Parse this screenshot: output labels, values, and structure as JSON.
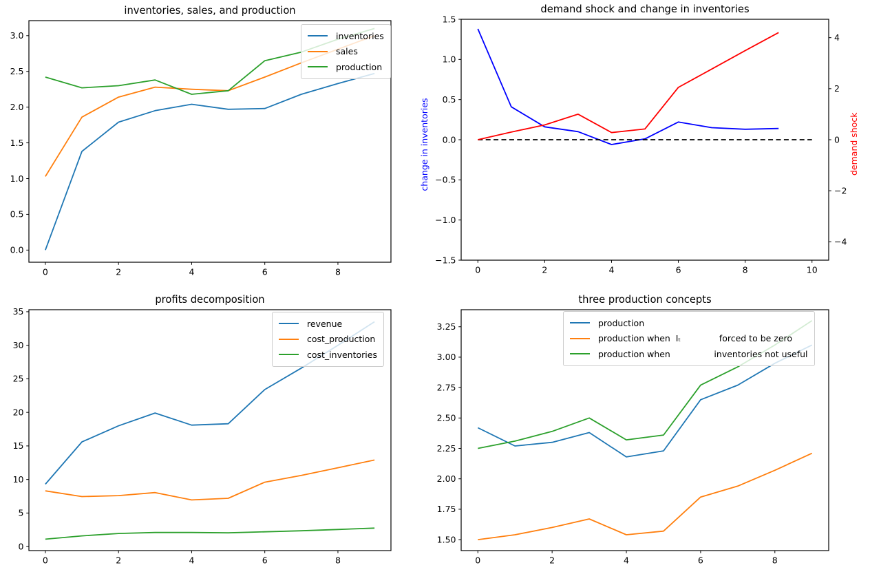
{
  "figure": {
    "background": "#ffffff",
    "text_color": "#000000"
  },
  "chart_data": [
    {
      "type": "line",
      "title": "inventories, sales, and production",
      "x": [
        0,
        1,
        2,
        3,
        4,
        5,
        6,
        7,
        8,
        9
      ],
      "xlim": [
        -0.45,
        9.45
      ],
      "ylim": [
        -0.17,
        3.21
      ],
      "grid": false,
      "legend": {
        "loc": "upper right",
        "entries": [
          {
            "label": "inventories",
            "color": "#1f77b4"
          },
          {
            "label": "sales",
            "color": "#ff7f0e"
          },
          {
            "label": "production",
            "color": "#2ca02c"
          }
        ]
      },
      "xticks": [
        {
          "v": 0,
          "label": "0"
        },
        {
          "v": 2,
          "label": "2"
        },
        {
          "v": 4,
          "label": "4"
        },
        {
          "v": 6,
          "label": "6"
        },
        {
          "v": 8,
          "label": "8"
        }
      ],
      "yticks": [
        {
          "v": 0.0,
          "label": "0.0"
        },
        {
          "v": 0.5,
          "label": "0.5"
        },
        {
          "v": 1.0,
          "label": "1.0"
        },
        {
          "v": 1.5,
          "label": "1.5"
        },
        {
          "v": 2.0,
          "label": "2.0"
        },
        {
          "v": 2.5,
          "label": "2.5"
        },
        {
          "v": 3.0,
          "label": "3.0"
        }
      ],
      "series": [
        {
          "name": "inventories",
          "color": "#1f77b4",
          "values": [
            0.0,
            1.38,
            1.79,
            1.95,
            2.04,
            1.97,
            1.98,
            2.18,
            2.33,
            2.47
          ]
        },
        {
          "name": "sales",
          "color": "#ff7f0e",
          "values": [
            1.03,
            1.86,
            2.14,
            2.28,
            2.25,
            2.23,
            2.42,
            2.62,
            2.81,
            3.0
          ]
        },
        {
          "name": "production",
          "color": "#2ca02c",
          "values": [
            2.42,
            2.27,
            2.3,
            2.38,
            2.18,
            2.23,
            2.65,
            2.77,
            2.95,
            3.1
          ]
        }
      ]
    },
    {
      "type": "line",
      "title": "demand shock and change in inventories",
      "x": [
        0,
        1,
        2,
        3,
        4,
        5,
        6,
        7,
        8,
        9
      ],
      "xlim": [
        -0.5,
        10.5
      ],
      "ylim": [
        -1.5,
        1.5
      ],
      "y2lim": [
        -4.72,
        4.72
      ],
      "grid": false,
      "ylabel_left": {
        "text": "change in inventories",
        "color": "#0000ff"
      },
      "ylabel_right": {
        "text": "demand shock",
        "color": "#ff0000"
      },
      "xticks": [
        {
          "v": 0,
          "label": "0"
        },
        {
          "v": 2,
          "label": "2"
        },
        {
          "v": 4,
          "label": "4"
        },
        {
          "v": 6,
          "label": "6"
        },
        {
          "v": 8,
          "label": "8"
        },
        {
          "v": 10,
          "label": "10"
        }
      ],
      "yticks": [
        {
          "v": 1.5,
          "label": "1.5"
        },
        {
          "v": 1.0,
          "label": "1.0"
        },
        {
          "v": 0.5,
          "label": "0.5"
        },
        {
          "v": 0.0,
          "label": "0.0"
        },
        {
          "v": -0.5,
          "label": "−0.5"
        },
        {
          "v": -1.0,
          "label": "−1.0"
        },
        {
          "v": -1.5,
          "label": "−1.5"
        }
      ],
      "y2ticks": [
        {
          "v": 4,
          "label": "4"
        },
        {
          "v": 2,
          "label": "2"
        },
        {
          "v": 0,
          "label": "0"
        },
        {
          "v": -2,
          "label": "−2"
        },
        {
          "v": -4,
          "label": "−4"
        }
      ],
      "series": [
        {
          "name": "change-in-inventories",
          "color": "#0000ff",
          "axis": "left",
          "values": [
            1.38,
            0.41,
            0.16,
            0.1,
            -0.06,
            0.01,
            0.22,
            0.15,
            0.13,
            0.14
          ]
        },
        {
          "name": "zero-line",
          "color": "#000000",
          "axis": "left",
          "dash": true,
          "x": [
            0,
            1,
            2,
            3,
            4,
            5,
            6,
            7,
            8,
            9,
            10
          ],
          "values": [
            0,
            0,
            0,
            0,
            0,
            0,
            0,
            0,
            0,
            0,
            0
          ]
        },
        {
          "name": "demand-shock",
          "color": "#ff0000",
          "axis": "right",
          "values": [
            0.0,
            0.3,
            0.58,
            1.0,
            0.28,
            0.42,
            2.05,
            2.77,
            3.49,
            4.2
          ]
        }
      ]
    },
    {
      "type": "line",
      "title": "profits decomposition",
      "x": [
        0,
        1,
        2,
        3,
        4,
        5,
        6,
        7,
        8,
        9
      ],
      "xlim": [
        -0.45,
        9.45
      ],
      "ylim": [
        -0.6,
        35.3
      ],
      "grid": false,
      "legend": {
        "loc": "upper right",
        "entries": [
          {
            "label": "revenue",
            "color": "#1f77b4"
          },
          {
            "label": "cost_production",
            "color": "#ff7f0e"
          },
          {
            "label": "cost_inventories",
            "color": "#2ca02c"
          }
        ]
      },
      "xticks": [
        {
          "v": 0,
          "label": "0"
        },
        {
          "v": 2,
          "label": "2"
        },
        {
          "v": 4,
          "label": "4"
        },
        {
          "v": 6,
          "label": "6"
        },
        {
          "v": 8,
          "label": "8"
        }
      ],
      "yticks": [
        {
          "v": 0,
          "label": "0"
        },
        {
          "v": 5,
          "label": "5"
        },
        {
          "v": 10,
          "label": "10"
        },
        {
          "v": 15,
          "label": "15"
        },
        {
          "v": 20,
          "label": "20"
        },
        {
          "v": 25,
          "label": "25"
        },
        {
          "v": 30,
          "label": "30"
        },
        {
          "v": 35,
          "label": "35"
        }
      ],
      "series": [
        {
          "name": "revenue",
          "color": "#1f77b4",
          "values": [
            9.3,
            15.6,
            18.0,
            19.9,
            18.1,
            18.3,
            23.4,
            26.6,
            30.0,
            33.5
          ]
        },
        {
          "name": "cost_production",
          "color": "#ff7f0e",
          "values": [
            8.3,
            7.45,
            7.6,
            8.05,
            6.95,
            7.2,
            9.6,
            10.6,
            11.75,
            12.9
          ]
        },
        {
          "name": "cost_inventories",
          "color": "#2ca02c",
          "values": [
            1.1,
            1.6,
            1.95,
            2.1,
            2.1,
            2.05,
            2.2,
            2.35,
            2.55,
            2.75
          ]
        }
      ]
    },
    {
      "type": "line",
      "title": "three production concepts",
      "x": [
        0,
        1,
        2,
        3,
        4,
        5,
        6,
        7,
        8,
        9
      ],
      "xlim": [
        -0.45,
        9.45
      ],
      "ylim": [
        1.41,
        3.39
      ],
      "grid": false,
      "legend": {
        "loc": "upper center",
        "entries": [
          {
            "label": "production",
            "color": "#1f77b4"
          },
          {
            "label": "production when  Iₜ              forced to be zero",
            "color": "#ff7f0e"
          },
          {
            "label": "production when                inventories not useful",
            "color": "#2ca02c"
          }
        ]
      },
      "xticks": [
        {
          "v": 0,
          "label": "0"
        },
        {
          "v": 2,
          "label": "2"
        },
        {
          "v": 4,
          "label": "4"
        },
        {
          "v": 6,
          "label": "6"
        },
        {
          "v": 8,
          "label": "8"
        }
      ],
      "yticks": [
        {
          "v": 1.5,
          "label": "1.50"
        },
        {
          "v": 1.75,
          "label": "1.75"
        },
        {
          "v": 2.0,
          "label": "2.00"
        },
        {
          "v": 2.25,
          "label": "2.25"
        },
        {
          "v": 2.5,
          "label": "2.50"
        },
        {
          "v": 2.75,
          "label": "2.75"
        },
        {
          "v": 3.0,
          "label": "3.00"
        },
        {
          "v": 3.25,
          "label": "3.25"
        }
      ],
      "series": [
        {
          "name": "production",
          "color": "#1f77b4",
          "values": [
            2.42,
            2.27,
            2.3,
            2.38,
            2.18,
            2.23,
            2.65,
            2.77,
            2.95,
            3.1
          ]
        },
        {
          "name": "production-when-It-forced-to-be-zero",
          "color": "#ff7f0e",
          "values": [
            1.5,
            1.54,
            1.6,
            1.67,
            1.54,
            1.57,
            1.85,
            1.94,
            2.07,
            2.21
          ]
        },
        {
          "name": "production-when-inventories-not-useful",
          "color": "#2ca02c",
          "values": [
            2.25,
            2.31,
            2.39,
            2.5,
            2.32,
            2.36,
            2.77,
            2.92,
            3.1,
            3.3
          ]
        }
      ]
    }
  ]
}
